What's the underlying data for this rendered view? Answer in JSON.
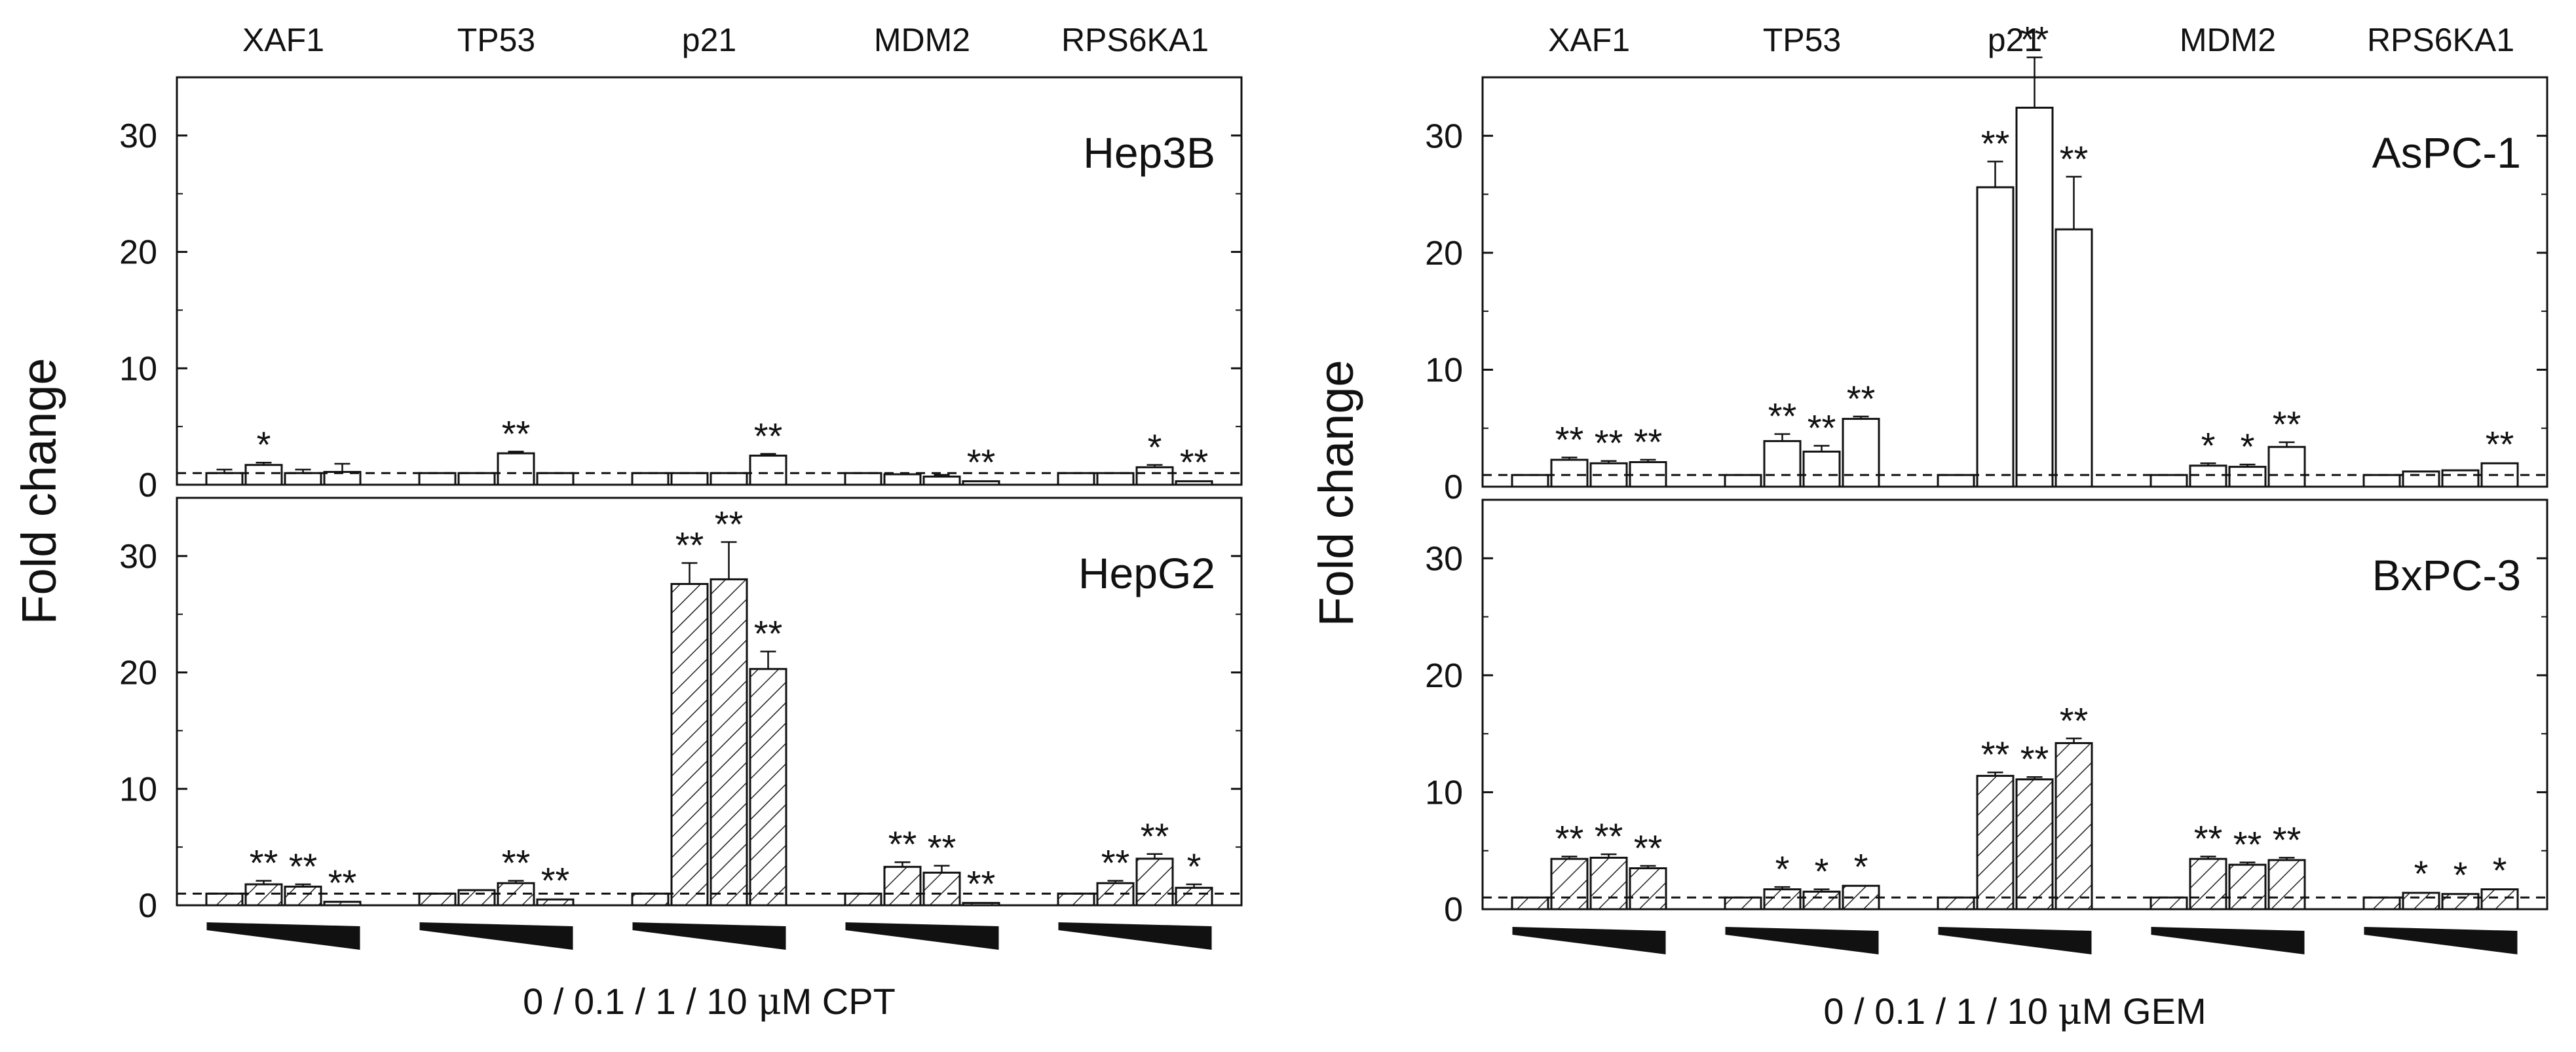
{
  "chart_data": {
    "type": "bar",
    "genes": [
      "XAF1",
      "TP53",
      "p21",
      "MDM2",
      "RPS6KA1"
    ],
    "ylabel": "Fold change",
    "ylim": [
      0,
      35
    ],
    "yticks": [
      0,
      10,
      20,
      30
    ],
    "baseline": 1,
    "figures": [
      {
        "xlabel_parts": [
          "0 / 0.1 / 1 / 10 ",
          "μ",
          "M CPT"
        ],
        "panels": [
          {
            "cell_line": "Hep3B",
            "fill": "open",
            "groups": [
              {
                "gene": "XAF1",
                "values": [
                  1.0,
                  1.7,
                  1.0,
                  1.1
                ],
                "errors": [
                  0.3,
                  0.2,
                  0.3,
                  0.7
                ],
                "sig": [
                  "",
                  "*",
                  "",
                  ""
                ]
              },
              {
                "gene": "TP53",
                "values": [
                  1.0,
                  1.0,
                  2.7,
                  1.0
                ],
                "errors": [
                  0.1,
                  0.1,
                  0.15,
                  0.1
                ],
                "sig": [
                  "",
                  "",
                  "**",
                  ""
                ]
              },
              {
                "gene": "p21",
                "values": [
                  1.0,
                  1.0,
                  1.0,
                  2.5
                ],
                "errors": [
                  0.1,
                  0.1,
                  0.1,
                  0.15
                ],
                "sig": [
                  "",
                  "",
                  "",
                  "**"
                ]
              },
              {
                "gene": "MDM2",
                "values": [
                  1.0,
                  0.9,
                  0.7,
                  0.3
                ],
                "errors": [
                  0.1,
                  0.1,
                  0.15,
                  0.1
                ],
                "sig": [
                  "",
                  "",
                  "",
                  "**"
                ]
              },
              {
                "gene": "RPS6KA1",
                "values": [
                  1.0,
                  1.0,
                  1.5,
                  0.3
                ],
                "errors": [
                  0.1,
                  0.1,
                  0.2,
                  0.1
                ],
                "sig": [
                  "",
                  "",
                  "*",
                  "**"
                ]
              }
            ]
          },
          {
            "cell_line": "HepG2",
            "fill": "hatched",
            "groups": [
              {
                "gene": "XAF1",
                "values": [
                  1.0,
                  1.8,
                  1.6,
                  0.3
                ],
                "errors": [
                  0.1,
                  0.3,
                  0.2,
                  0.1
                ],
                "sig": [
                  "",
                  "**",
                  "**",
                  "**"
                ]
              },
              {
                "gene": "TP53",
                "values": [
                  1.0,
                  1.3,
                  1.9,
                  0.5
                ],
                "errors": [
                  0.1,
                  0.1,
                  0.2,
                  0.1
                ],
                "sig": [
                  "",
                  "",
                  "**",
                  "**"
                ]
              },
              {
                "gene": "p21",
                "values": [
                  1.0,
                  27.6,
                  28.0,
                  20.3
                ],
                "errors": [
                  0.1,
                  1.8,
                  3.2,
                  1.5
                ],
                "sig": [
                  "",
                  "**",
                  "**",
                  "**"
                ]
              },
              {
                "gene": "MDM2",
                "values": [
                  1.0,
                  3.3,
                  2.8,
                  0.2
                ],
                "errors": [
                  0.1,
                  0.4,
                  0.6,
                  0.1
                ],
                "sig": [
                  "",
                  "**",
                  "**",
                  "**"
                ]
              },
              {
                "gene": "RPS6KA1",
                "values": [
                  1.0,
                  1.9,
                  4.0,
                  1.5
                ],
                "errors": [
                  0.1,
                  0.2,
                  0.4,
                  0.3
                ],
                "sig": [
                  "",
                  "**",
                  "**",
                  "*"
                ]
              }
            ]
          }
        ]
      },
      {
        "xlabel_parts": [
          "0 / 0.1 / 1 / 10 ",
          "μ",
          "M GEM"
        ],
        "panels": [
          {
            "cell_line": "AsPC-1",
            "fill": "open",
            "groups": [
              {
                "gene": "XAF1",
                "values": [
                  1.0,
                  2.3,
                  2.0,
                  2.1
                ],
                "errors": [
                  0.1,
                  0.2,
                  0.2,
                  0.2
                ],
                "sig": [
                  "",
                  "**",
                  "**",
                  "**"
                ]
              },
              {
                "gene": "TP53",
                "values": [
                  1.0,
                  3.9,
                  3.0,
                  5.8
                ],
                "errors": [
                  0.1,
                  0.6,
                  0.5,
                  0.2
                ],
                "sig": [
                  "",
                  "**",
                  "**",
                  "**"
                ]
              },
              {
                "gene": "p21",
                "values": [
                  1.0,
                  25.6,
                  32.4,
                  22.0
                ],
                "errors": [
                  0.1,
                  2.2,
                  4.3,
                  4.5
                ],
                "sig": [
                  "",
                  "**",
                  "**",
                  "**"
                ]
              },
              {
                "gene": "MDM2",
                "values": [
                  1.0,
                  1.8,
                  1.7,
                  3.4
                ],
                "errors": [
                  0.1,
                  0.2,
                  0.2,
                  0.4
                ],
                "sig": [
                  "",
                  "*",
                  "*",
                  "**"
                ]
              },
              {
                "gene": "RPS6KA1",
                "values": [
                  1.0,
                  1.3,
                  1.4,
                  2.0
                ],
                "errors": [
                  0.1,
                  0.1,
                  0.1,
                  0.1
                ],
                "sig": [
                  "",
                  "",
                  "",
                  "**"
                ]
              }
            ]
          },
          {
            "cell_line": "BxPC-3",
            "fill": "hatched",
            "groups": [
              {
                "gene": "XAF1",
                "values": [
                  1.0,
                  4.3,
                  4.4,
                  3.5
                ],
                "errors": [
                  0.1,
                  0.2,
                  0.3,
                  0.2
                ],
                "sig": [
                  "",
                  "**",
                  "**",
                  "**"
                ]
              },
              {
                "gene": "TP53",
                "values": [
                  1.0,
                  1.7,
                  1.5,
                  2.0
                ],
                "errors": [
                  0.1,
                  0.2,
                  0.2,
                  0.1
                ],
                "sig": [
                  "",
                  "*",
                  "*",
                  "*"
                ]
              },
              {
                "gene": "p21",
                "values": [
                  1.0,
                  11.4,
                  11.1,
                  14.2
                ],
                "errors": [
                  0.1,
                  0.3,
                  0.2,
                  0.4
                ],
                "sig": [
                  "",
                  "**",
                  "**",
                  "**"
                ]
              },
              {
                "gene": "MDM2",
                "values": [
                  1.0,
                  4.3,
                  3.8,
                  4.2
                ],
                "errors": [
                  0.1,
                  0.2,
                  0.2,
                  0.2
                ],
                "sig": [
                  "",
                  "**",
                  "**",
                  "**"
                ]
              },
              {
                "gene": "RPS6KA1",
                "values": [
                  1.0,
                  1.4,
                  1.3,
                  1.7
                ],
                "errors": [
                  0.1,
                  0.1,
                  0.1,
                  0.1
                ],
                "sig": [
                  "",
                  "*",
                  "*",
                  "*"
                ]
              }
            ]
          }
        ]
      }
    ]
  }
}
